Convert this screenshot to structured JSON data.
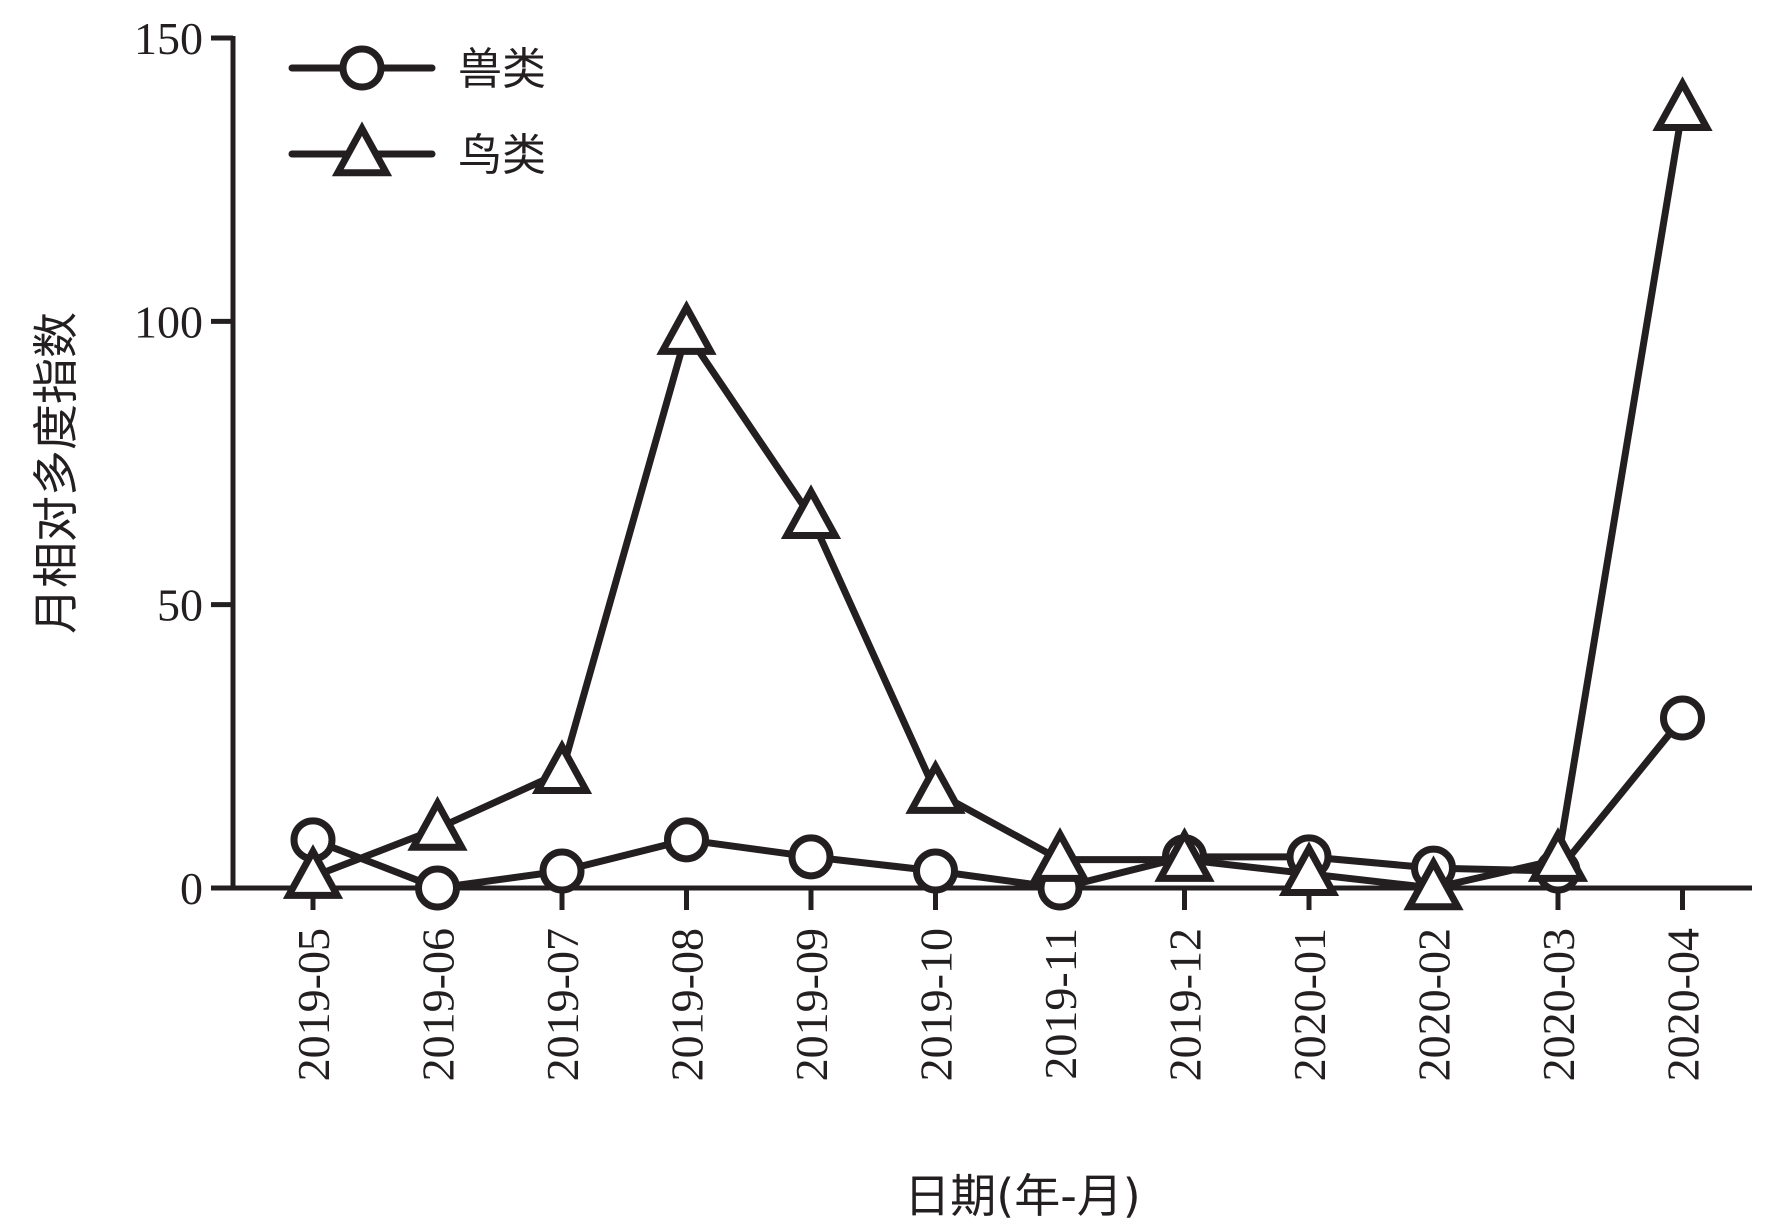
{
  "chart_data": {
    "type": "line",
    "title": "",
    "xlabel": "日期(年-月)",
    "ylabel": "月相对多度指数",
    "categories": [
      "2019-05",
      "2019-06",
      "2019-07",
      "2019-08",
      "2019-09",
      "2019-10",
      "2019-11",
      "2019-12",
      "2020-01",
      "2020-02",
      "2020-03",
      "2020-04"
    ],
    "ylim": [
      0,
      150
    ],
    "yticks": [
      0,
      50,
      100,
      150
    ],
    "grid": false,
    "legend": "top-left",
    "series": [
      {
        "name": "兽类",
        "marker": "circle",
        "values": [
          8.5,
          0,
          3,
          8.5,
          5.5,
          3,
          0,
          5.5,
          5.5,
          3.5,
          3,
          30
        ]
      },
      {
        "name": "鸟类",
        "marker": "triangle",
        "values": [
          2,
          10.5,
          20.5,
          98,
          65.5,
          17,
          5,
          5,
          2.5,
          0,
          5,
          137.5
        ]
      }
    ]
  }
}
